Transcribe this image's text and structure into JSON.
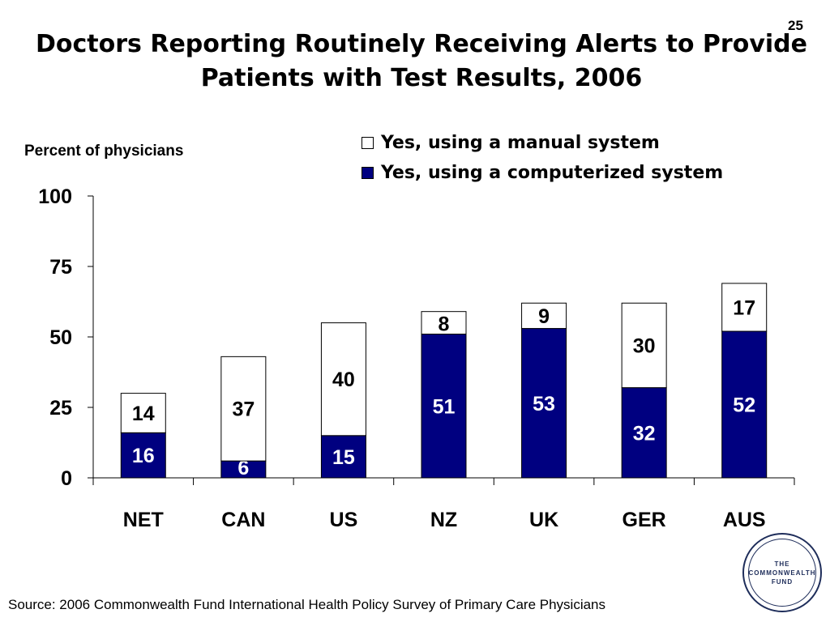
{
  "slide_number": "25",
  "chart_data": {
    "type": "bar",
    "stacked": true,
    "title": "Doctors Reporting Routinely Receiving Alerts to Provide Patients with Test Results, 2006",
    "ylabel": "Percent of physicians",
    "xlabel": "",
    "ylim": [
      0,
      100
    ],
    "yticks": [
      0,
      25,
      50,
      75,
      100
    ],
    "categories": [
      "NET",
      "CAN",
      "US",
      "NZ",
      "UK",
      "GER",
      "AUS"
    ],
    "series": [
      {
        "name": "Yes, using a computerized system",
        "color": "#000080",
        "values": [
          16,
          6,
          15,
          51,
          53,
          32,
          52
        ]
      },
      {
        "name": "Yes, using a manual system",
        "color": "#ffffff",
        "values": [
          14,
          37,
          40,
          8,
          9,
          30,
          17
        ]
      }
    ],
    "legend_position": "top-right",
    "grid": false
  },
  "source": "Source: 2006 Commonwealth Fund International Health Policy Survey of Primary Care Physicians",
  "logo": {
    "line1": "THE",
    "line2": "COMMONWEALTH",
    "line3": "FUND"
  }
}
